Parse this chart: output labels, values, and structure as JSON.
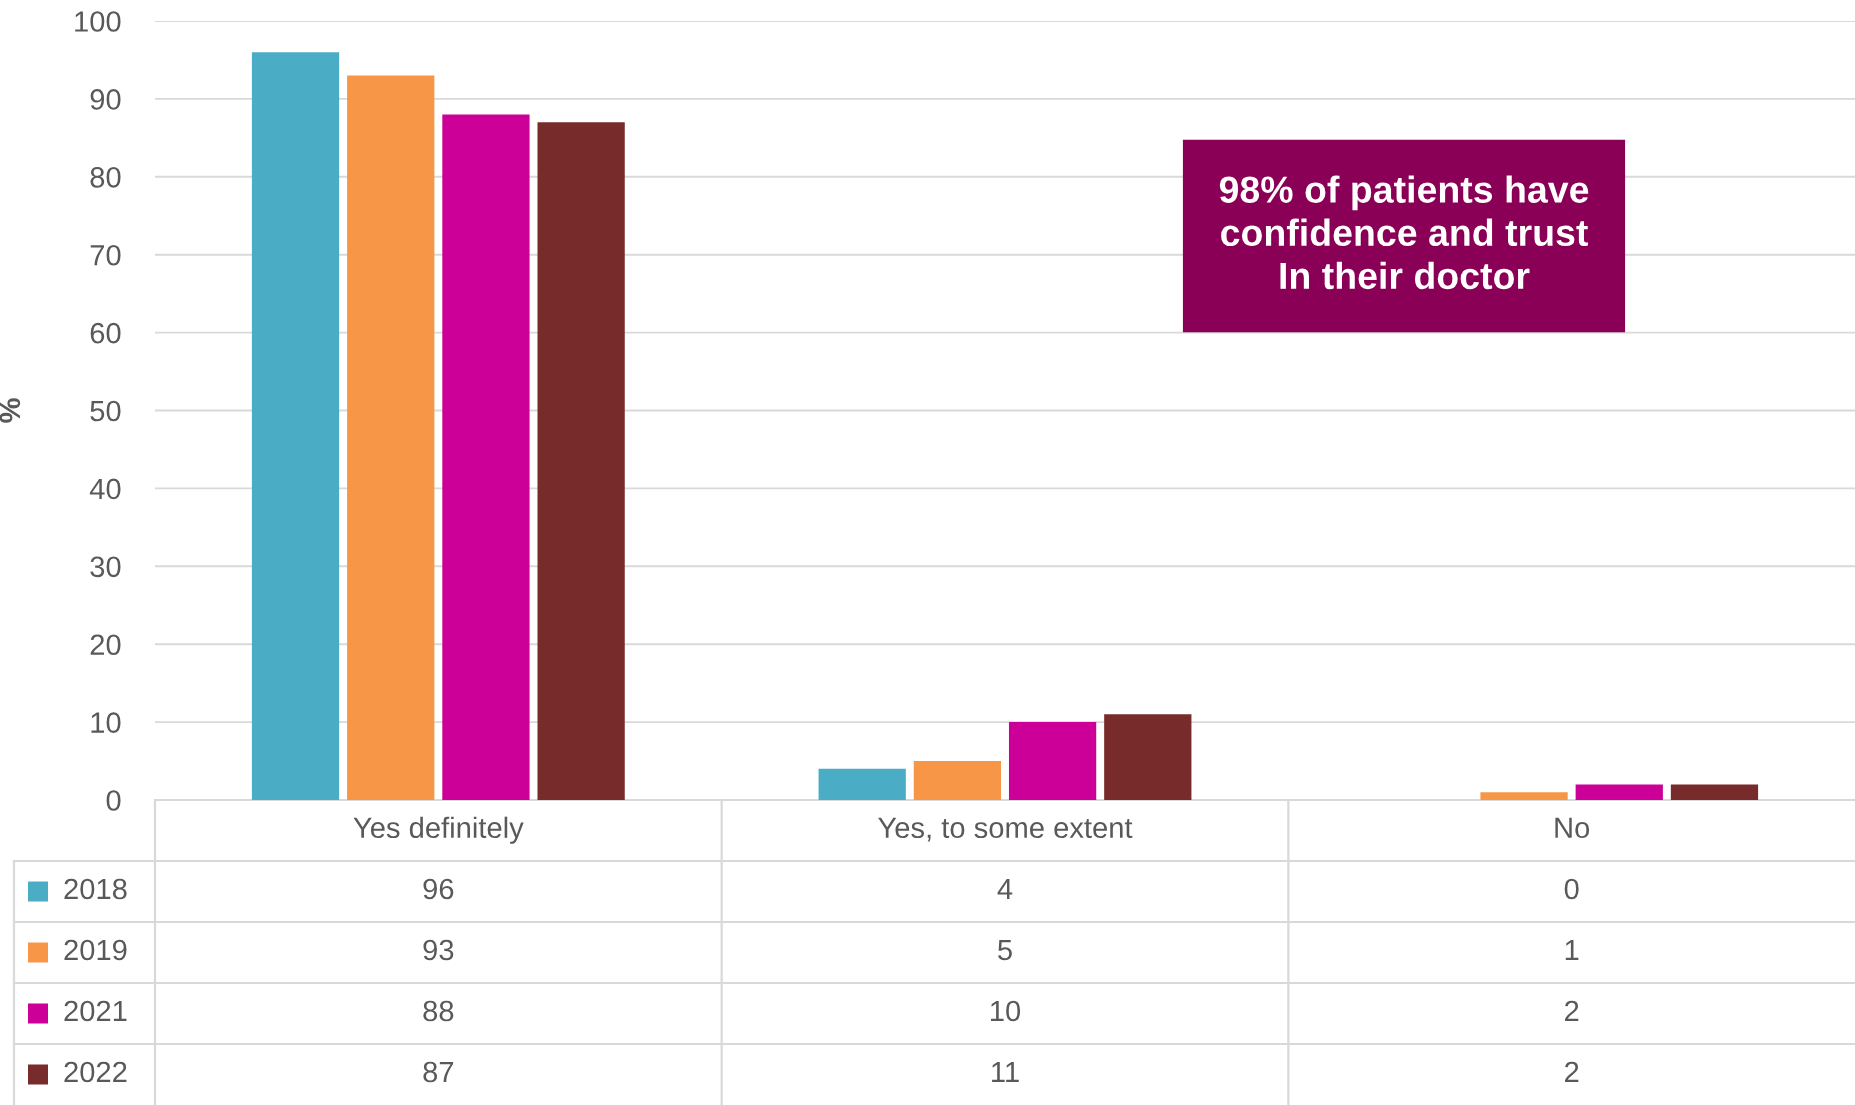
{
  "chart_data": {
    "type": "bar",
    "ylabel": "%",
    "categories": [
      "Yes definitely",
      "Yes, to some extent",
      "No"
    ],
    "series": [
      {
        "name": "2018",
        "color": "#4bacc6",
        "values": [
          96,
          4,
          0
        ]
      },
      {
        "name": "2019",
        "color": "#f79646",
        "values": [
          93,
          5,
          1
        ]
      },
      {
        "name": "2021",
        "color": "#cc0099",
        "values": [
          88,
          10,
          2
        ]
      },
      {
        "name": "2022",
        "color": "#772b2b",
        "values": [
          87,
          11,
          2
        ]
      }
    ],
    "ylim": [
      0,
      100
    ],
    "yticks": [
      0,
      10,
      20,
      30,
      40,
      50,
      60,
      70,
      80,
      90,
      100
    ],
    "grid": "y",
    "legend": "bottom",
    "data_labels": true,
    "annotations": [
      "98% of patients have\nconfidence and trust\nIn their doctor"
    ]
  }
}
